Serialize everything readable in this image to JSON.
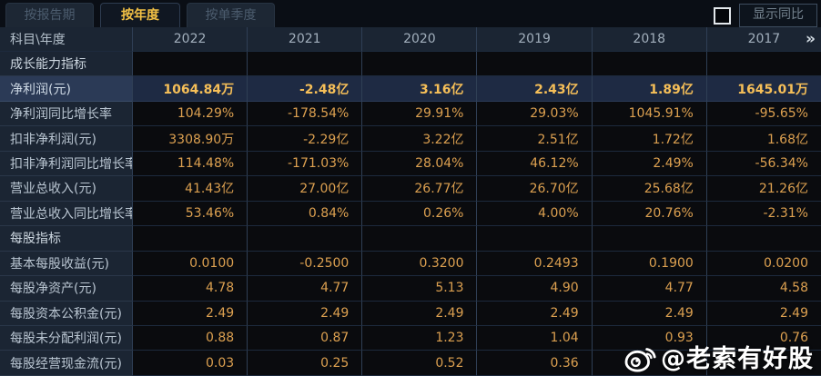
{
  "tabs": [
    {
      "label": "按报告期",
      "active": false
    },
    {
      "label": "按年度",
      "active": true
    },
    {
      "label": "按单季度",
      "active": false
    }
  ],
  "controls": {
    "yoy_label": "显示同比",
    "yoy_checkbox_checked": false
  },
  "table": {
    "corner_label": "科目\\年度",
    "years": [
      "2022",
      "2021",
      "2020",
      "2019",
      "2018",
      "2017"
    ],
    "more_icon": "»",
    "rows": [
      {
        "type": "section",
        "label": "成长能力指标",
        "values": [
          "",
          "",
          "",
          "",
          "",
          ""
        ]
      },
      {
        "type": "data",
        "highlight": true,
        "label": "净利润(元)",
        "values": [
          "1064.84万",
          "-2.48亿",
          "3.16亿",
          "2.43亿",
          "1.89亿",
          "1645.01万"
        ]
      },
      {
        "type": "data",
        "label": "净利润同比增长率",
        "values": [
          "104.29%",
          "-178.54%",
          "29.91%",
          "29.03%",
          "1045.91%",
          "-95.65%"
        ]
      },
      {
        "type": "data",
        "label": "扣非净利润(元)",
        "values": [
          "3308.90万",
          "-2.29亿",
          "3.22亿",
          "2.51亿",
          "1.72亿",
          "1.68亿"
        ]
      },
      {
        "type": "data",
        "label": "扣非净利润同比增长率",
        "values": [
          "114.48%",
          "-171.03%",
          "28.04%",
          "46.12%",
          "2.49%",
          "-56.34%"
        ]
      },
      {
        "type": "data",
        "label": "营业总收入(元)",
        "values": [
          "41.43亿",
          "27.00亿",
          "26.77亿",
          "26.70亿",
          "25.68亿",
          "21.26亿"
        ]
      },
      {
        "type": "data",
        "label": "营业总收入同比增长率",
        "values": [
          "53.46%",
          "0.84%",
          "0.26%",
          "4.00%",
          "20.76%",
          "-2.31%"
        ]
      },
      {
        "type": "section",
        "label": "每股指标",
        "values": [
          "",
          "",
          "",
          "",
          "",
          ""
        ]
      },
      {
        "type": "data",
        "label": "基本每股收益(元)",
        "values": [
          "0.0100",
          "-0.2500",
          "0.3200",
          "0.2493",
          "0.1900",
          "0.0200"
        ]
      },
      {
        "type": "data",
        "label": "每股净资产(元)",
        "values": [
          "4.78",
          "4.77",
          "5.13",
          "4.90",
          "4.77",
          "4.58"
        ]
      },
      {
        "type": "data",
        "label": "每股资本公积金(元)",
        "values": [
          "2.49",
          "2.49",
          "2.49",
          "2.49",
          "2.49",
          "2.49"
        ]
      },
      {
        "type": "data",
        "label": "每股未分配利润(元)",
        "values": [
          "0.88",
          "0.87",
          "1.23",
          "1.04",
          "0.93",
          "0.76"
        ]
      },
      {
        "type": "data",
        "label": "每股经营现金流(元)",
        "values": [
          "0.03",
          "0.25",
          "0.52",
          "0.36",
          "",
          ""
        ]
      }
    ]
  },
  "watermark": {
    "text": "@老索有好股"
  },
  "colors": {
    "accent_gold": "#f3c145",
    "value_amber": "#dca050",
    "highlight_row_bg": "#1e2a43",
    "panel_bg": "#1b2533",
    "cell_bg": "#0a0b0e"
  }
}
